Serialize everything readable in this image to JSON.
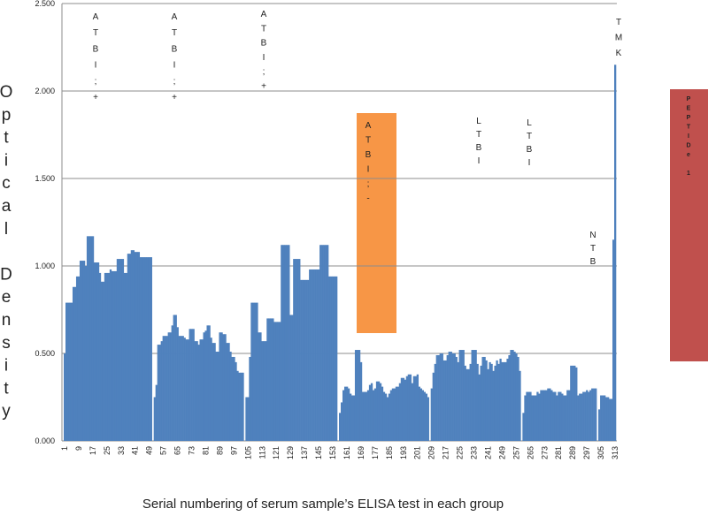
{
  "chart_data": {
    "type": "bar",
    "y_label": "Optical Density",
    "x_label": "Serial numbering  of serum sample’s ELISA test in each group",
    "color": "#4f81bd",
    "grid": true,
    "annotations": [
      "ATBI;+",
      "ATBI;+",
      "ATBI;+",
      "ATBI;-",
      "LTBI",
      "LTBI",
      "NTB",
      "TMK",
      "PEPTIDe 1"
    ],
    "xlim": [
      0.5,
      313.5
    ],
    "xticks": [
      1,
      9,
      17,
      25,
      33,
      41,
      49,
      57,
      65,
      73,
      81,
      89,
      97,
      105,
      113,
      121,
      129,
      137,
      145,
      153,
      161,
      169,
      177,
      185,
      193,
      201,
      209,
      217,
      225,
      233,
      241,
      249,
      257,
      265,
      273,
      281,
      289,
      297,
      305,
      313
    ],
    "ylim": [
      0,
      2.5
    ],
    "yticks": [
      {
        "value": 0,
        "label": "0.000"
      },
      {
        "value": 0.5,
        "label": "0.500"
      },
      {
        "value": 1,
        "label": "1.000"
      },
      {
        "value": 1.5,
        "label": "1.500"
      },
      {
        "value": 2,
        "label": "2.000"
      },
      {
        "value": 2.5,
        "label": "2.500"
      }
    ],
    "x": [
      1,
      2,
      3,
      4,
      5,
      6,
      7,
      8,
      9,
      10,
      11,
      12,
      13,
      14,
      15,
      16,
      17,
      18,
      19,
      20,
      21,
      22,
      23,
      24,
      25,
      26,
      27,
      28,
      29,
      30,
      31,
      32,
      33,
      34,
      35,
      36,
      37,
      38,
      39,
      40,
      41,
      42,
      43,
      44,
      45,
      46,
      47,
      48,
      49,
      50,
      51,
      52,
      53,
      54,
      55,
      56,
      57,
      58,
      59,
      60,
      61,
      62,
      63,
      64,
      65,
      66,
      67,
      68,
      69,
      70,
      71,
      72,
      73,
      74,
      75,
      76,
      77,
      78,
      79,
      80,
      81,
      82,
      83,
      84,
      85,
      86,
      87,
      88,
      89,
      90,
      91,
      92,
      93,
      94,
      95,
      96,
      97,
      98,
      99,
      100,
      101,
      102,
      103,
      104,
      105,
      106,
      107,
      108,
      109,
      110,
      111,
      112,
      113,
      114,
      115,
      116,
      117,
      118,
      119,
      120,
      121,
      122,
      123,
      124,
      125,
      126,
      127,
      128,
      129,
      130,
      131,
      132,
      133,
      134,
      135,
      136,
      137,
      138,
      139,
      140,
      141,
      142,
      143,
      144,
      145,
      146,
      147,
      148,
      149,
      150,
      151,
      152,
      153,
      154,
      155,
      156,
      157,
      158,
      159,
      160,
      161,
      162,
      163,
      164,
      165,
      166,
      167,
      168,
      169,
      170,
      171,
      172,
      173,
      174,
      175,
      176,
      177,
      178,
      179,
      180,
      181,
      182,
      183,
      184,
      185,
      186,
      187,
      188,
      189,
      190,
      191,
      192,
      193,
      194,
      195,
      196,
      197,
      198,
      199,
      200,
      201,
      202,
      203,
      204,
      205,
      206,
      207,
      208,
      209,
      210,
      211,
      212,
      213,
      214,
      215,
      216,
      217,
      218,
      219,
      220,
      221,
      222,
      223,
      224,
      225,
      226,
      227,
      228,
      229,
      230,
      231,
      232,
      233,
      234,
      235,
      236,
      237,
      238,
      239,
      240,
      241,
      242,
      243,
      244,
      245,
      246,
      247,
      248,
      249,
      250,
      251,
      252,
      253,
      254,
      255,
      256,
      257,
      258,
      259,
      260,
      261,
      262,
      263,
      264,
      265,
      266,
      267,
      268,
      269,
      270,
      271,
      272,
      273,
      274,
      275,
      276,
      277,
      278,
      279,
      280,
      281,
      282,
      283,
      284,
      285,
      286,
      287,
      288,
      289,
      290,
      291,
      292,
      293,
      294,
      295,
      296,
      297,
      298,
      299,
      300,
      301,
      302,
      303,
      304,
      305,
      306,
      307,
      308,
      309,
      310,
      311,
      312,
      313
    ],
    "values": [
      0.5,
      0.79,
      0.79,
      0.79,
      0.79,
      0.88,
      0.88,
      0.94,
      0.94,
      1.03,
      1.03,
      1.03,
      1.0,
      1.17,
      1.17,
      1.17,
      1.17,
      1.02,
      1.02,
      1.02,
      0.96,
      0.91,
      0.91,
      0.96,
      0.96,
      0.96,
      0.98,
      0.97,
      0.97,
      0.97,
      1.04,
      1.04,
      1.04,
      1.04,
      0.96,
      0.96,
      1.07,
      1.07,
      1.09,
      1.09,
      1.08,
      1.08,
      1.08,
      1.05,
      1.05,
      1.05,
      1.05,
      1.05,
      1.05,
      1.05,
      null,
      0.25,
      0.32,
      0.55,
      0.55,
      0.57,
      0.6,
      0.6,
      0.6,
      0.62,
      0.62,
      0.66,
      0.72,
      0.72,
      0.65,
      0.6,
      0.6,
      0.6,
      0.59,
      0.58,
      0.58,
      0.64,
      0.64,
      0.64,
      0.57,
      0.57,
      0.55,
      0.58,
      0.58,
      0.62,
      0.63,
      0.66,
      0.66,
      0.59,
      0.56,
      0.56,
      0.51,
      0.51,
      0.62,
      0.62,
      0.61,
      0.61,
      0.56,
      0.56,
      0.51,
      0.48,
      0.48,
      0.45,
      0.4,
      0.39,
      0.39,
      0.39,
      null,
      0.25,
      0.25,
      0.48,
      0.79,
      0.79,
      0.79,
      0.79,
      0.62,
      0.62,
      0.57,
      0.57,
      0.57,
      0.7,
      0.7,
      0.7,
      0.7,
      0.68,
      0.68,
      0.68,
      0.68,
      1.12,
      1.12,
      1.12,
      1.12,
      1.12,
      0.72,
      0.72,
      1.04,
      1.04,
      1.04,
      1.04,
      0.92,
      0.92,
      0.92,
      0.92,
      0.92,
      0.98,
      0.98,
      0.98,
      0.98,
      0.98,
      0.98,
      1.12,
      1.12,
      1.12,
      1.12,
      1.12,
      0.94,
      0.94,
      0.94,
      0.94,
      0.94,
      null,
      0.16,
      0.22,
      0.29,
      0.31,
      0.31,
      0.3,
      0.27,
      0.26,
      0.26,
      0.52,
      0.52,
      0.52,
      0.45,
      0.28,
      0.28,
      0.28,
      0.29,
      0.32,
      0.33,
      0.29,
      0.3,
      0.34,
      0.34,
      0.33,
      0.31,
      0.28,
      0.27,
      0.25,
      0.27,
      0.29,
      0.3,
      0.3,
      0.31,
      0.31,
      0.33,
      0.36,
      0.36,
      0.35,
      0.37,
      0.38,
      0.38,
      0.33,
      0.37,
      0.37,
      0.38,
      0.31,
      0.3,
      0.29,
      0.28,
      0.27,
      0.25,
      null,
      0.3,
      0.39,
      0.44,
      0.49,
      0.49,
      0.5,
      0.5,
      0.46,
      0.46,
      0.49,
      0.51,
      0.51,
      0.5,
      0.5,
      0.48,
      0.45,
      0.52,
      0.52,
      0.52,
      0.43,
      0.41,
      0.41,
      0.44,
      0.52,
      0.52,
      0.52,
      0.44,
      0.38,
      0.43,
      0.48,
      0.48,
      0.46,
      0.41,
      0.45,
      0.44,
      0.4,
      0.43,
      0.46,
      0.44,
      0.47,
      0.45,
      0.45,
      0.45,
      0.47,
      0.49,
      0.52,
      0.52,
      0.51,
      0.5,
      0.48,
      0.4,
      null,
      0.16,
      0.26,
      0.28,
      0.28,
      0.28,
      0.26,
      0.26,
      0.26,
      0.28,
      0.27,
      0.29,
      0.29,
      0.29,
      0.29,
      0.3,
      0.3,
      0.29,
      0.28,
      0.28,
      0.26,
      0.28,
      0.28,
      0.27,
      0.26,
      0.26,
      0.29,
      0.29,
      0.43,
      0.43,
      0.43,
      0.42,
      0.26,
      0.27,
      0.27,
      0.28,
      0.28,
      0.29,
      0.28,
      0.29,
      0.3,
      0.3,
      0.3,
      null,
      0.18,
      0.26,
      0.26,
      0.26,
      0.25,
      0.25,
      0.24,
      0.24,
      1.15,
      2.15
    ]
  }
}
